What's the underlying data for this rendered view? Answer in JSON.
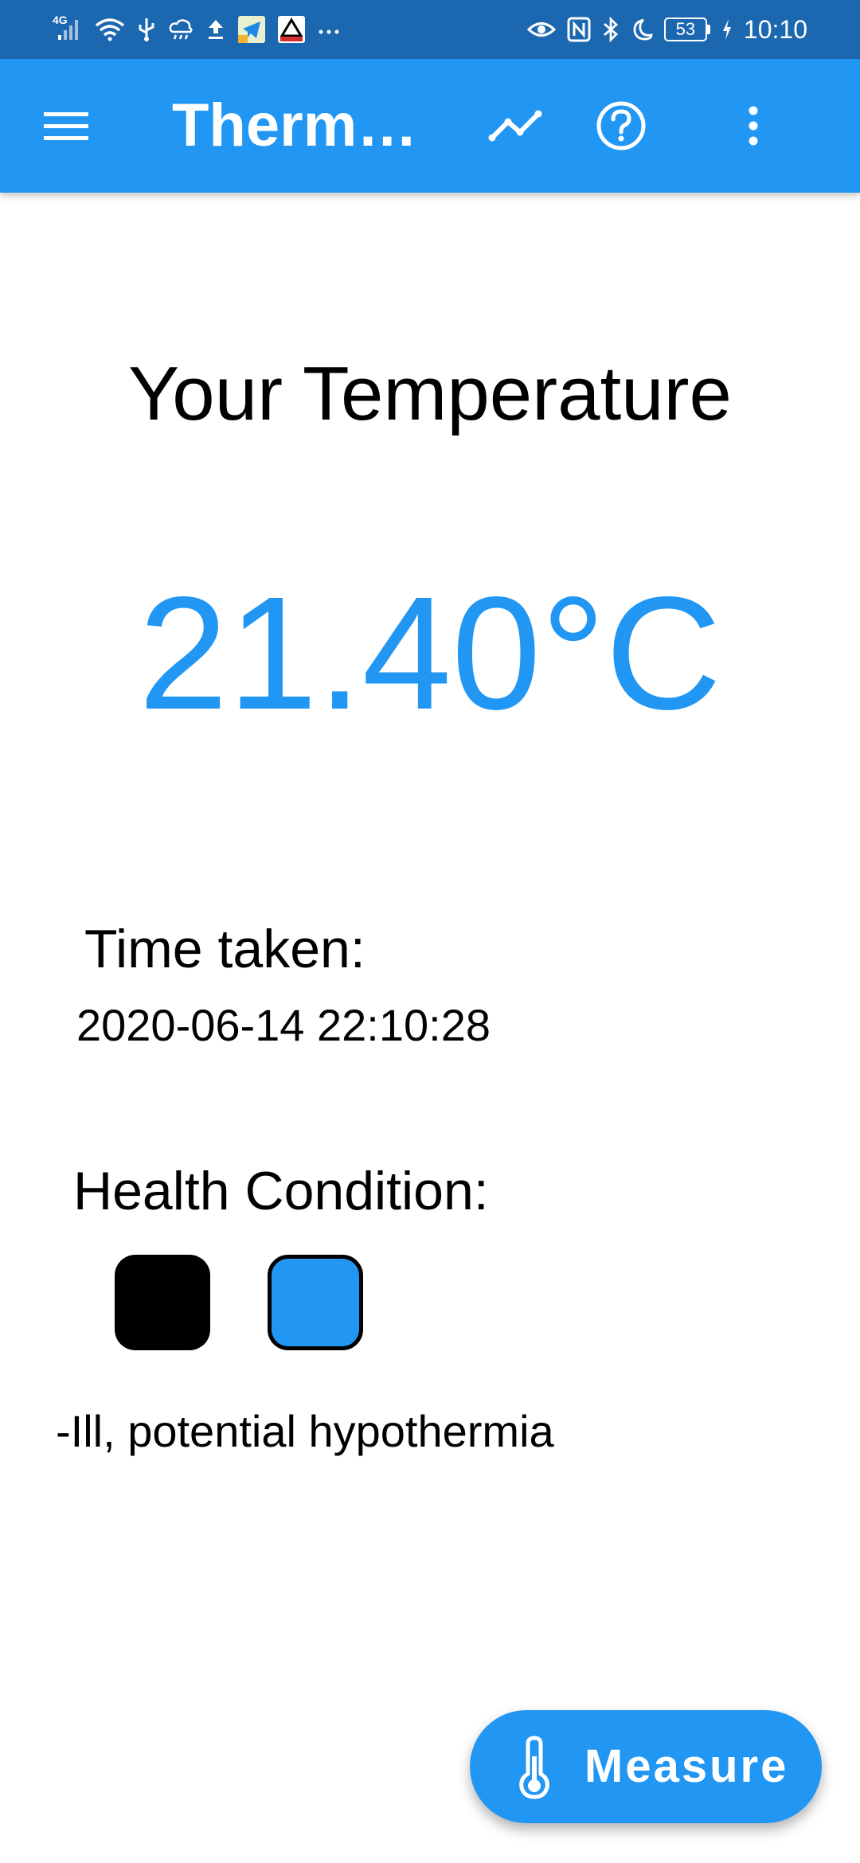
{
  "status_bar": {
    "network_label": "4G",
    "battery_level": "53",
    "time": "10:10",
    "icons": [
      "signal-icon",
      "wifi-icon",
      "usb-icon",
      "cloud-icon",
      "upload-icon",
      "telegram-icon",
      "app-icon",
      "more-notifications-icon",
      "eye-icon",
      "nfc-icon",
      "bluetooth-icon",
      "moon-icon",
      "battery-icon",
      "charging-icon"
    ]
  },
  "app_bar": {
    "title": "Thermometer",
    "icons": [
      "menu-icon",
      "chart-icon",
      "help-icon",
      "more-vert-icon"
    ],
    "background_color": "#2196f3"
  },
  "main": {
    "heading": "Your Temperature",
    "temperature": "21.40°C",
    "temperature_color": "#2196f3",
    "time_label": "Time taken:",
    "time_value": "2020-06-14 22:10:28",
    "health_label": "Health Condition:",
    "health_indicators": [
      {
        "color": "#000000"
      },
      {
        "color": "#2196f3"
      }
    ],
    "condition_text": "-Ill, potential hypothermia"
  },
  "fab": {
    "label": "Measure",
    "icon": "thermometer-icon"
  }
}
